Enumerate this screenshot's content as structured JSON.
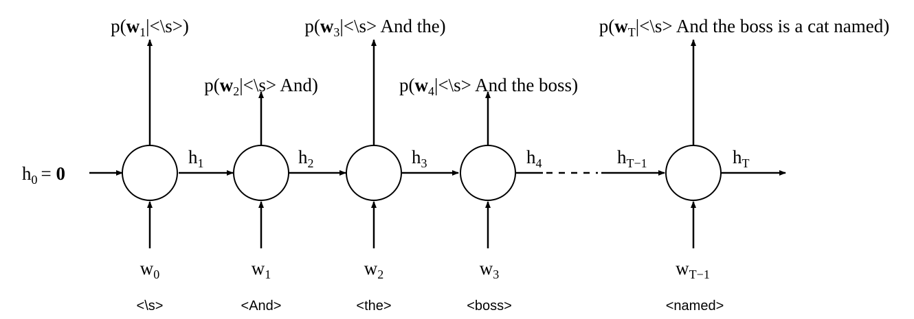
{
  "initial_state": {
    "symbol": "h",
    "sub": "0",
    "eq": "= ",
    "bold": "0"
  },
  "cells": [
    {
      "input": {
        "symbol": "w",
        "sub": "0"
      },
      "token": "<\\s>",
      "output": {
        "pre": "p(",
        "w": "w",
        "sub": "1",
        "post": "|<\\s>)"
      },
      "hidden": {
        "symbol": "h",
        "sub": "1"
      }
    },
    {
      "input": {
        "symbol": "w",
        "sub": "1"
      },
      "token": "<And>",
      "output": {
        "pre": "p(",
        "w": "w",
        "sub": "2",
        "post": "|<\\s> And)"
      },
      "hidden": {
        "symbol": "h",
        "sub": "2"
      }
    },
    {
      "input": {
        "symbol": "w",
        "sub": "2"
      },
      "token": "<the>",
      "output": {
        "pre": "p(",
        "w": "w",
        "sub": "3",
        "post": "|<\\s> And the)"
      },
      "hidden": {
        "symbol": "h",
        "sub": "3"
      }
    },
    {
      "input": {
        "symbol": "w",
        "sub": "3"
      },
      "token": "<boss>",
      "output": {
        "pre": "p(",
        "w": "w",
        "sub": "4",
        "post": "|<\\s> And the boss)"
      },
      "hidden": {
        "symbol": "h",
        "sub": "4"
      }
    },
    {
      "input": {
        "symbol": "w",
        "sub": "T−1"
      },
      "token": "<named>",
      "output": {
        "pre": "p(",
        "w": "w",
        "sub": "T",
        "post": "|<\\s> And the boss is a cat named)"
      },
      "hidden": {
        "symbol": "h",
        "sub": "T"
      }
    }
  ],
  "incoming_last": {
    "symbol": "h",
    "sub": "T−1"
  }
}
